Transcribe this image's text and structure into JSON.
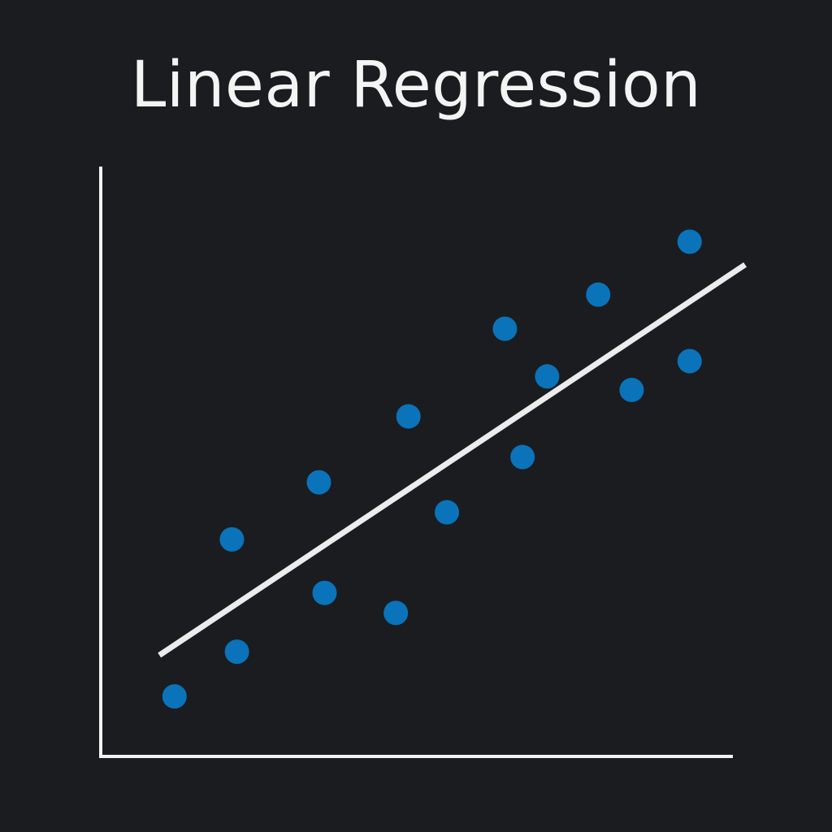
{
  "chart_data": {
    "type": "scatter",
    "title": "Linear Regression",
    "xlabel": "",
    "ylabel": "",
    "xlim": [
      0,
      100
    ],
    "ylim": [
      0,
      100
    ],
    "grid": false,
    "show_ticks": false,
    "colors": {
      "background": "#1b1c20",
      "axes": "#f2f2f2",
      "points": "#0a73ba",
      "fit_line": "#ececec",
      "title": "#f4f4f4"
    },
    "series": [
      {
        "kind": "scatter",
        "points": [
          {
            "x": 11.7,
            "y": 10.2
          },
          {
            "x": 21.6,
            "y": 17.8
          },
          {
            "x": 20.8,
            "y": 36.9
          },
          {
            "x": 34.6,
            "y": 46.6
          },
          {
            "x": 35.5,
            "y": 27.8
          },
          {
            "x": 46.8,
            "y": 24.4
          },
          {
            "x": 48.8,
            "y": 57.8
          },
          {
            "x": 54.9,
            "y": 41.5
          },
          {
            "x": 66.9,
            "y": 50.9
          },
          {
            "x": 64.1,
            "y": 72.7
          },
          {
            "x": 70.8,
            "y": 64.6
          },
          {
            "x": 78.9,
            "y": 78.5
          },
          {
            "x": 84.2,
            "y": 62.3
          },
          {
            "x": 93.4,
            "y": 67.2
          },
          {
            "x": 93.4,
            "y": 87.5
          }
        ]
      },
      {
        "kind": "line",
        "points": [
          {
            "x": 9.3,
            "y": 17.2
          },
          {
            "x": 102.2,
            "y": 83.6
          }
        ]
      }
    ]
  }
}
